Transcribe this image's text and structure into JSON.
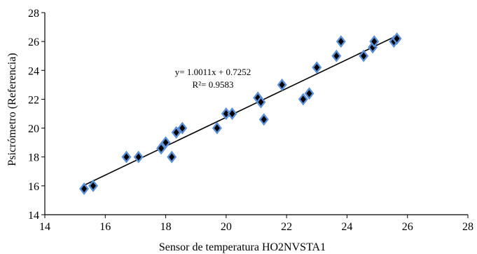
{
  "chart_data": {
    "type": "scatter",
    "title": "",
    "xlabel": "Sensor de temperatura HO2NVSTA1",
    "ylabel": "Psicrómetro (Referencia)",
    "xlim": [
      14,
      28
    ],
    "ylim": [
      14,
      28
    ],
    "xticks": [
      "14",
      "16",
      "18",
      "20",
      "22",
      "24",
      "26",
      "28"
    ],
    "yticks": [
      "14",
      "16",
      "18",
      "20",
      "22",
      "24",
      "26",
      "28"
    ],
    "grid": false,
    "legend": false,
    "marker": "diamond",
    "marker_fill": "#000000",
    "marker_edge": "#5b8fd6",
    "trendline": {
      "equation": "y= 1.0011x + 0.7252",
      "r2": "R²= 0.9583",
      "slope": 1.0011,
      "intercept": 0.7252,
      "x_range": [
        15.3,
        25.7
      ],
      "color": "#000000"
    },
    "points": [
      {
        "x": 15.3,
        "y": 15.8
      },
      {
        "x": 15.6,
        "y": 16.0
      },
      {
        "x": 16.7,
        "y": 18.0
      },
      {
        "x": 17.1,
        "y": 18.0
      },
      {
        "x": 17.85,
        "y": 18.6
      },
      {
        "x": 18.0,
        "y": 19.0
      },
      {
        "x": 18.2,
        "y": 18.0
      },
      {
        "x": 18.35,
        "y": 19.7
      },
      {
        "x": 18.55,
        "y": 20.0
      },
      {
        "x": 19.7,
        "y": 20.0
      },
      {
        "x": 20.0,
        "y": 21.0
      },
      {
        "x": 20.2,
        "y": 21.0
      },
      {
        "x": 21.05,
        "y": 22.1
      },
      {
        "x": 21.15,
        "y": 21.8
      },
      {
        "x": 21.25,
        "y": 20.6
      },
      {
        "x": 21.85,
        "y": 23.0
      },
      {
        "x": 22.55,
        "y": 22.0
      },
      {
        "x": 22.75,
        "y": 22.4
      },
      {
        "x": 23.0,
        "y": 24.2
      },
      {
        "x": 23.65,
        "y": 25.0
      },
      {
        "x": 23.8,
        "y": 26.0
      },
      {
        "x": 24.55,
        "y": 25.0
      },
      {
        "x": 24.85,
        "y": 25.6
      },
      {
        "x": 24.9,
        "y": 26.0
      },
      {
        "x": 25.55,
        "y": 26.0
      },
      {
        "x": 25.65,
        "y": 26.2
      }
    ]
  }
}
